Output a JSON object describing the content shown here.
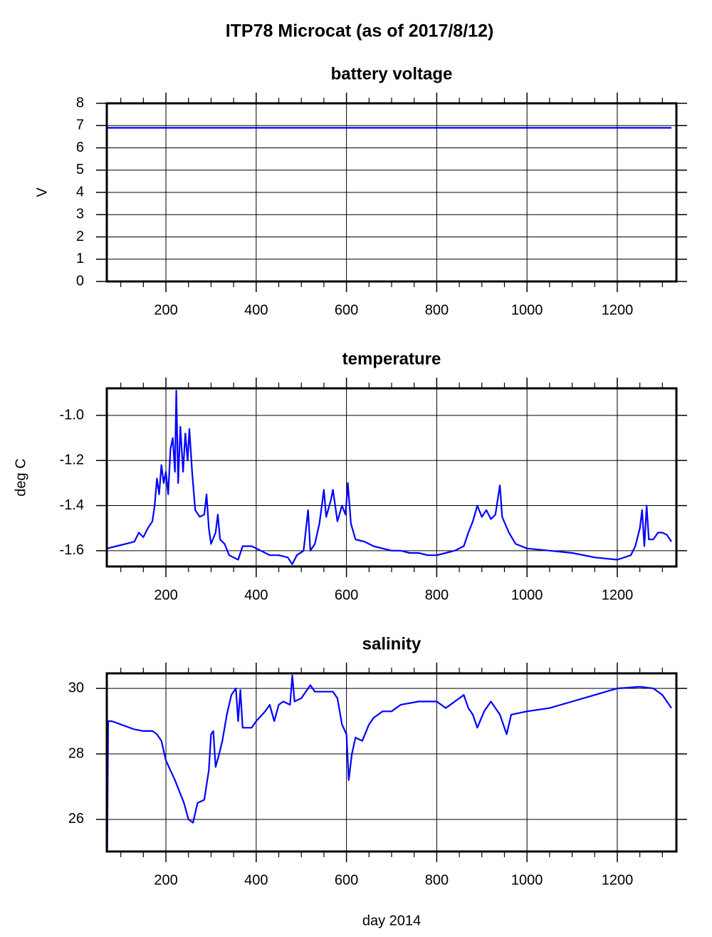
{
  "title": "ITP78 Microcat  (as of 2017/8/12)",
  "chart_data": [
    {
      "type": "line",
      "title": "battery voltage",
      "ylabel": "V",
      "color": "#0000ff",
      "grid": true,
      "xlim": [
        69,
        1331
      ],
      "ylim": [
        0,
        8
      ],
      "xticks": [
        200,
        400,
        600,
        800,
        1000,
        1200
      ],
      "xminorticks": [
        100,
        150,
        250,
        300,
        350,
        450,
        500,
        550,
        650,
        700,
        750,
        850,
        900,
        950,
        1050,
        1100,
        1150,
        1250,
        1300
      ],
      "yticks": [
        0,
        1,
        2,
        3,
        4,
        5,
        6,
        7,
        8
      ],
      "x": [
        70,
        200,
        400,
        600,
        800,
        1000,
        1200,
        1320
      ],
      "values": [
        6.9,
        6.9,
        6.9,
        6.9,
        6.9,
        6.9,
        6.9,
        6.9
      ]
    },
    {
      "type": "line",
      "title": "temperature",
      "ylabel": "deg C",
      "color": "#0000ff",
      "grid": true,
      "xlim": [
        69,
        1331
      ],
      "ylim": [
        -1.67,
        -0.88
      ],
      "xticks": [
        200,
        400,
        600,
        800,
        1000,
        1200
      ],
      "xminorticks": [
        100,
        150,
        250,
        300,
        350,
        450,
        500,
        550,
        650,
        700,
        750,
        850,
        900,
        950,
        1050,
        1100,
        1150,
        1250,
        1300
      ],
      "yticks": [
        -1.6,
        -1.4,
        -1.2,
        {
          "value": -1,
          "label": "-1.0"
        }
      ],
      "x": [
        70,
        90,
        110,
        130,
        140,
        150,
        160,
        170,
        175,
        180,
        185,
        190,
        195,
        200,
        205,
        210,
        215,
        220,
        223,
        227,
        232,
        238,
        243,
        248,
        252,
        258,
        265,
        275,
        285,
        290,
        295,
        300,
        310,
        315,
        320,
        330,
        340,
        350,
        360,
        370,
        390,
        410,
        430,
        450,
        470,
        480,
        490,
        505,
        515,
        520,
        530,
        540,
        550,
        555,
        565,
        570,
        580,
        590,
        598,
        603,
        610,
        620,
        640,
        660,
        680,
        700,
        720,
        740,
        760,
        780,
        800,
        820,
        840,
        860,
        870,
        880,
        890,
        900,
        910,
        920,
        930,
        940,
        945,
        960,
        975,
        1000,
        1050,
        1100,
        1150,
        1200,
        1230,
        1240,
        1250,
        1255,
        1260,
        1265,
        1270,
        1280,
        1290,
        1300,
        1310,
        1320
      ],
      "values": [
        -1.59,
        -1.58,
        -1.57,
        -1.56,
        -1.52,
        -1.54,
        -1.5,
        -1.47,
        -1.4,
        -1.28,
        -1.35,
        -1.22,
        -1.3,
        -1.25,
        -1.35,
        -1.15,
        -1.1,
        -1.25,
        -0.89,
        -1.3,
        -1.05,
        -1.25,
        -1.08,
        -1.2,
        -1.06,
        -1.25,
        -1.42,
        -1.45,
        -1.44,
        -1.35,
        -1.5,
        -1.57,
        -1.52,
        -1.44,
        -1.55,
        -1.57,
        -1.62,
        -1.63,
        -1.64,
        -1.58,
        -1.58,
        -1.6,
        -1.62,
        -1.62,
        -1.63,
        -1.66,
        -1.62,
        -1.6,
        -1.42,
        -1.6,
        -1.57,
        -1.48,
        -1.33,
        -1.45,
        -1.38,
        -1.33,
        -1.47,
        -1.4,
        -1.44,
        -1.3,
        -1.48,
        -1.55,
        -1.56,
        -1.58,
        -1.59,
        -1.6,
        -1.6,
        -1.61,
        -1.61,
        -1.62,
        -1.62,
        -1.61,
        -1.6,
        -1.58,
        -1.52,
        -1.47,
        -1.4,
        -1.45,
        -1.42,
        -1.46,
        -1.44,
        -1.31,
        -1.45,
        -1.52,
        -1.57,
        -1.59,
        -1.6,
        -1.61,
        -1.63,
        -1.64,
        -1.62,
        -1.58,
        -1.5,
        -1.42,
        -1.58,
        -1.4,
        -1.55,
        -1.55,
        -1.52,
        -1.52,
        -1.53,
        -1.56
      ]
    },
    {
      "type": "line",
      "title": "salinity",
      "xlabel": "day 2014",
      "color": "#0000ff",
      "grid": true,
      "xlim": [
        69,
        1331
      ],
      "ylim": [
        25.02,
        30.46
      ],
      "xticks": [
        200,
        400,
        600,
        800,
        1000,
        1200
      ],
      "xminorticks": [
        100,
        150,
        250,
        300,
        350,
        450,
        500,
        550,
        650,
        700,
        750,
        850,
        900,
        950,
        1050,
        1100,
        1150,
        1250,
        1300
      ],
      "yticks": [
        26,
        28,
        30
      ],
      "x": [
        70,
        72,
        80,
        100,
        130,
        150,
        170,
        180,
        190,
        200,
        220,
        240,
        250,
        260,
        270,
        285,
        295,
        300,
        305,
        310,
        318,
        325,
        335,
        345,
        355,
        360,
        365,
        370,
        390,
        400,
        420,
        430,
        440,
        450,
        460,
        475,
        480,
        485,
        500,
        520,
        530,
        550,
        570,
        580,
        590,
        600,
        605,
        612,
        620,
        635,
        650,
        660,
        680,
        700,
        720,
        760,
        800,
        820,
        840,
        860,
        870,
        880,
        890,
        905,
        920,
        940,
        955,
        965,
        1000,
        1050,
        1100,
        1150,
        1200,
        1250,
        1280,
        1300,
        1320
      ],
      "values": [
        25.05,
        29.0,
        29.0,
        28.9,
        28.75,
        28.7,
        28.7,
        28.6,
        28.4,
        27.8,
        27.2,
        26.5,
        26.0,
        25.9,
        26.5,
        26.6,
        27.5,
        28.6,
        28.7,
        27.6,
        28.0,
        28.4,
        29.2,
        29.8,
        30.0,
        29.0,
        29.95,
        28.8,
        28.8,
        29.0,
        29.3,
        29.5,
        29.0,
        29.5,
        29.6,
        29.5,
        30.4,
        29.6,
        29.7,
        30.1,
        29.9,
        29.9,
        29.9,
        29.7,
        28.9,
        28.6,
        27.2,
        28.0,
        28.5,
        28.4,
        28.9,
        29.1,
        29.3,
        29.3,
        29.5,
        29.6,
        29.6,
        29.4,
        29.6,
        29.8,
        29.4,
        29.2,
        28.8,
        29.3,
        29.6,
        29.2,
        28.6,
        29.2,
        29.3,
        29.4,
        29.6,
        29.8,
        30.0,
        30.05,
        30.0,
        29.8,
        29.4
      ]
    }
  ]
}
